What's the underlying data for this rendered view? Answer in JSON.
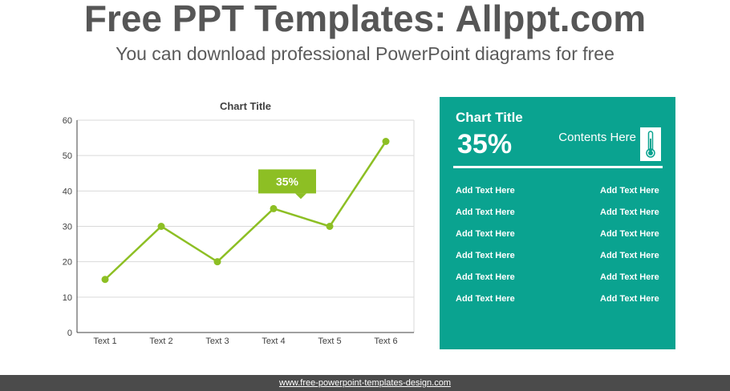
{
  "header": {
    "title": "Free PPT Templates: Allppt.com",
    "subtitle": "You can download professional PowerPoint diagrams for free"
  },
  "chart_data": {
    "type": "line",
    "title": "Chart Title",
    "categories": [
      "Text 1",
      "Text 2",
      "Text 3",
      "Text 4",
      "Text 5",
      "Text 6"
    ],
    "values": [
      15,
      30,
      20,
      35,
      30,
      54
    ],
    "ylim": [
      0,
      60
    ],
    "yticks": [
      0,
      10,
      20,
      30,
      40,
      50,
      60
    ],
    "grid": true,
    "line_color": "#8dbf24",
    "callout": {
      "category": "Text 4",
      "label": "35%"
    }
  },
  "panel": {
    "title": "Chart Title",
    "value": "35%",
    "contents": "Contents Here",
    "icon": "thermometer-icon",
    "bg_color": "#0aa390",
    "left_items": [
      "Add Text  Here",
      "Add Text  Here",
      "Add Text  Here",
      "Add Text  Here",
      "Add Text  Here",
      "Add Text  Here"
    ],
    "right_items": [
      "Add Text  Here",
      "Add Text  Here",
      "Add Text  Here",
      "Add Text  Here",
      "Add Text  Here",
      "Add Text  Here"
    ]
  },
  "footer": {
    "link": "www.free-powerpoint-templates-design.com"
  }
}
